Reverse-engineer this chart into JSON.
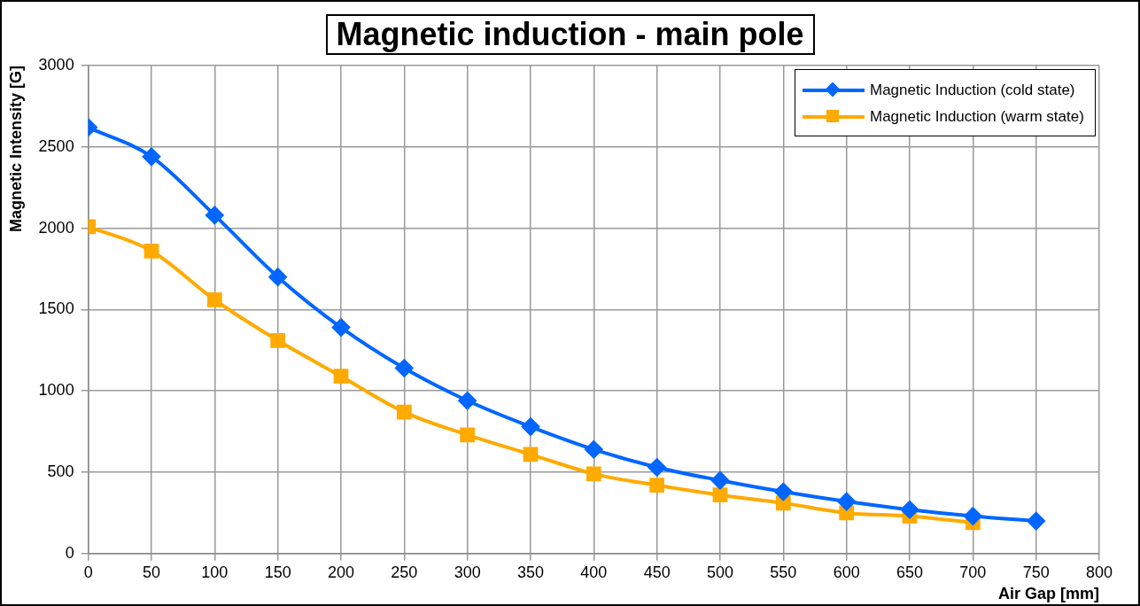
{
  "chart_data": {
    "type": "line",
    "title": "Magnetic induction - main pole",
    "xlabel": "Air Gap [mm]",
    "ylabel": "Magnetic Intensity [G]",
    "xlim": [
      0,
      800
    ],
    "xticks": [
      0,
      50,
      100,
      150,
      200,
      250,
      300,
      350,
      400,
      450,
      500,
      550,
      600,
      650,
      700,
      750,
      800
    ],
    "ylim": [
      0,
      3000
    ],
    "yticks": [
      0,
      500,
      1000,
      1500,
      2000,
      2500,
      3000
    ],
    "grid": true,
    "legend": "top right",
    "series": [
      {
        "name": "Magnetic Induction (cold state)",
        "color": "#0066ff",
        "marker": "diamond",
        "x": [
          0,
          50,
          100,
          150,
          200,
          250,
          300,
          350,
          400,
          450,
          500,
          550,
          600,
          650,
          700,
          750
        ],
        "values": [
          2620,
          2440,
          2080,
          1700,
          1390,
          1140,
          940,
          780,
          640,
          530,
          450,
          380,
          320,
          270,
          230,
          200
        ]
      },
      {
        "name": "Magnetic Induction (warm state)",
        "color": "#ffaa00",
        "marker": "square",
        "x": [
          0,
          50,
          100,
          150,
          200,
          250,
          300,
          350,
          400,
          450,
          500,
          550,
          600,
          650,
          700
        ],
        "values": [
          2010,
          1860,
          1560,
          1310,
          1090,
          870,
          730,
          610,
          490,
          420,
          360,
          310,
          250,
          230,
          190
        ]
      }
    ]
  }
}
